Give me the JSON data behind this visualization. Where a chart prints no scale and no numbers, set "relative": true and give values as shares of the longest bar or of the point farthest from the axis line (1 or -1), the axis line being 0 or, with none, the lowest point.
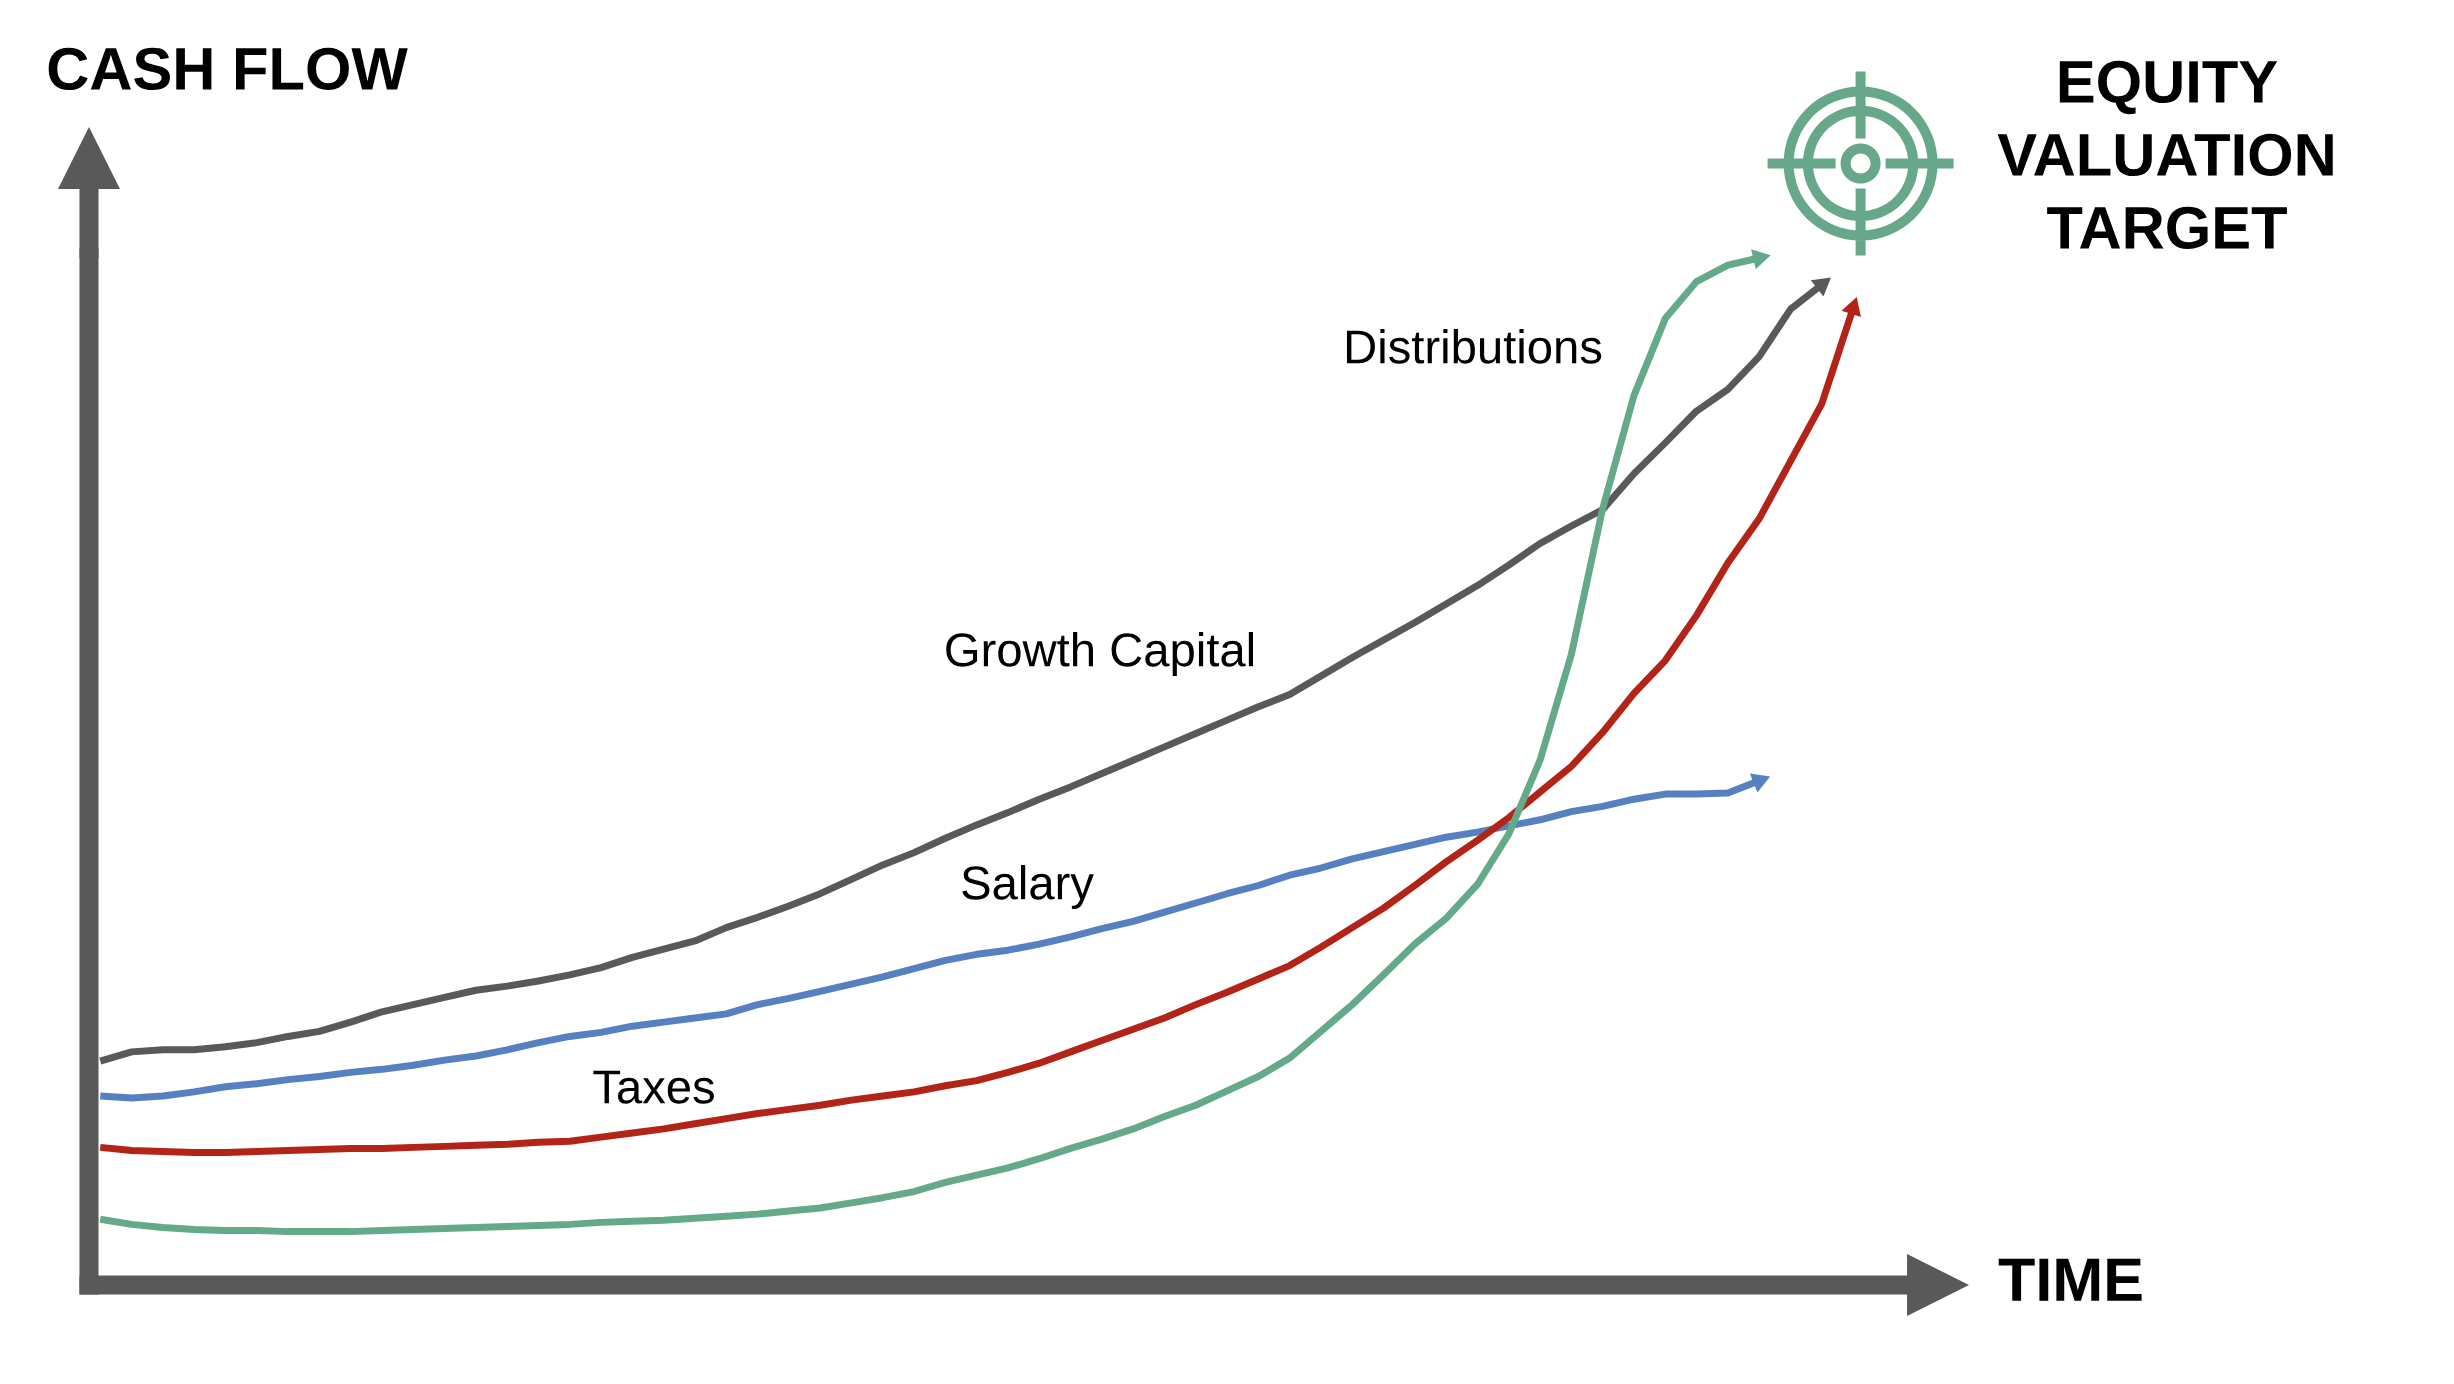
{
  "chart_data": {
    "type": "line",
    "relative": true,
    "xlabel": "TIME",
    "ylabel": "CASH FLOW",
    "annotations": [
      "EQUITY\nVALUATION\nTARGET"
    ],
    "marker": "none",
    "line_style": "solid",
    "categories": [
      null,
      null,
      null,
      null,
      null,
      null,
      null,
      null,
      null,
      null,
      null,
      null,
      null,
      null,
      null,
      null,
      null,
      null,
      null,
      null,
      null,
      null,
      null,
      null,
      null,
      null,
      null,
      null,
      null,
      null,
      null,
      null,
      null,
      null,
      null,
      null,
      null,
      null,
      null,
      null,
      null,
      null,
      null,
      null,
      null,
      null,
      null,
      null,
      null,
      null,
      null,
      null,
      null,
      null,
      null,
      null,
      null
    ],
    "series": [
      {
        "name": "Growth Capital",
        "color": "#595959",
        "values": [
          0.218,
          0.227,
          0.229,
          0.229,
          0.232,
          0.236,
          0.242,
          0.247,
          0.256,
          0.266,
          0.273,
          0.28,
          0.287,
          0.291,
          0.296,
          0.302,
          0.309,
          0.319,
          0.327,
          0.335,
          0.348,
          0.358,
          0.369,
          0.381,
          0.395,
          0.409,
          0.421,
          0.435,
          0.448,
          0.46,
          0.473,
          0.485,
          0.498,
          0.511,
          0.524,
          0.537,
          0.55,
          0.563,
          0.575,
          0.593,
          0.611,
          0.628,
          0.645,
          0.663,
          0.681,
          0.701,
          0.722,
          0.739,
          0.755,
          0.79,
          0.82,
          0.851,
          0.872,
          0.904,
          0.95,
          0.974,
          null
        ]
      },
      {
        "name": "Salary",
        "color": "#5680c0",
        "values": [
          0.184,
          0.182,
          0.184,
          0.188,
          0.193,
          0.196,
          0.2,
          0.203,
          0.207,
          0.21,
          0.214,
          0.219,
          0.223,
          0.229,
          0.236,
          0.242,
          0.246,
          0.252,
          0.256,
          0.26,
          0.264,
          0.273,
          0.279,
          0.286,
          0.293,
          0.3,
          0.308,
          0.316,
          0.322,
          0.326,
          0.332,
          0.339,
          0.347,
          0.354,
          0.363,
          0.372,
          0.381,
          0.389,
          0.399,
          0.406,
          0.415,
          0.422,
          0.429,
          0.436,
          0.441,
          0.447,
          0.453,
          0.461,
          0.466,
          0.473,
          0.478,
          0.478,
          0.479,
          0.491,
          null,
          null,
          null
        ]
      },
      {
        "name": "Taxes",
        "color": "#b22418",
        "values": [
          0.134,
          0.131,
          0.13,
          0.129,
          0.129,
          0.13,
          0.131,
          0.132,
          0.133,
          0.133,
          0.134,
          0.135,
          0.136,
          0.137,
          0.139,
          0.14,
          0.144,
          0.148,
          0.152,
          0.157,
          0.162,
          0.167,
          0.171,
          0.175,
          0.18,
          0.184,
          0.188,
          0.194,
          0.199,
          0.207,
          0.216,
          0.227,
          0.238,
          0.249,
          0.26,
          0.273,
          0.285,
          0.298,
          0.311,
          0.329,
          0.348,
          0.367,
          0.389,
          0.412,
          0.433,
          0.455,
          0.48,
          0.505,
          0.538,
          0.576,
          0.608,
          0.652,
          0.703,
          0.746,
          0.802,
          0.858,
          0.951
        ]
      },
      {
        "name": "Distributions",
        "color": "#64a98a",
        "values": [
          0.064,
          0.059,
          0.056,
          0.054,
          0.053,
          0.053,
          0.052,
          0.052,
          0.052,
          0.053,
          0.054,
          0.055,
          0.056,
          0.057,
          0.058,
          0.059,
          0.061,
          0.062,
          0.063,
          0.065,
          0.067,
          0.069,
          0.072,
          0.075,
          0.08,
          0.085,
          0.091,
          0.1,
          0.107,
          0.114,
          0.123,
          0.133,
          0.142,
          0.152,
          0.164,
          0.175,
          0.189,
          0.203,
          0.221,
          0.247,
          0.273,
          0.302,
          0.332,
          0.357,
          0.39,
          0.439,
          0.511,
          0.614,
          0.756,
          0.866,
          0.941,
          0.977,
          0.993,
          1,
          null,
          null,
          null
        ]
      }
    ]
  }
}
